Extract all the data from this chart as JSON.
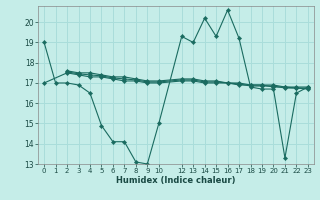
{
  "title": "",
  "xlabel": "Humidex (Indice chaleur)",
  "bg_color": "#c5ede8",
  "grid_color": "#aaddda",
  "line_color": "#1a6b60",
  "ylim": [
    13,
    20.8
  ],
  "xlim": [
    -0.5,
    23.5
  ],
  "yticks": [
    13,
    14,
    15,
    16,
    17,
    18,
    19,
    20
  ],
  "xticks": [
    0,
    1,
    2,
    3,
    4,
    5,
    6,
    7,
    8,
    9,
    10,
    12,
    13,
    14,
    15,
    16,
    17,
    18,
    19,
    20,
    21,
    22,
    23
  ],
  "series": [
    {
      "x": [
        0,
        1,
        2,
        3,
        4,
        5,
        6,
        7,
        8,
        9,
        10,
        12,
        13,
        14,
        15,
        16,
        17,
        18,
        19,
        20,
        21,
        22,
        23
      ],
      "y": [
        19.0,
        17.0,
        17.0,
        16.9,
        16.5,
        14.9,
        14.1,
        14.1,
        13.1,
        13.0,
        15.0,
        19.3,
        19.0,
        20.2,
        19.3,
        20.6,
        19.2,
        16.8,
        16.7,
        16.7,
        13.3,
        16.5,
        16.8
      ]
    },
    {
      "x": [
        2,
        3,
        4,
        5,
        6,
        7,
        8,
        9,
        10,
        12,
        13,
        14,
        15,
        16,
        17,
        18,
        19,
        20,
        21,
        22,
        23
      ],
      "y": [
        17.6,
        17.5,
        17.5,
        17.4,
        17.3,
        17.3,
        17.2,
        17.1,
        17.1,
        17.2,
        17.2,
        17.1,
        17.1,
        17.0,
        17.0,
        16.9,
        16.9,
        16.9,
        16.8,
        16.8,
        16.8
      ]
    },
    {
      "x": [
        2,
        3,
        4,
        5,
        6,
        7,
        8,
        9,
        10,
        12,
        13,
        14,
        15,
        16,
        17,
        18,
        19,
        20,
        21,
        22,
        23
      ],
      "y": [
        17.55,
        17.45,
        17.4,
        17.35,
        17.25,
        17.2,
        17.15,
        17.05,
        17.05,
        17.15,
        17.15,
        17.05,
        17.05,
        17.0,
        16.95,
        16.85,
        16.85,
        16.85,
        16.75,
        16.75,
        16.75
      ]
    },
    {
      "x": [
        0,
        2,
        3,
        4,
        5,
        6,
        7,
        8,
        9,
        10,
        12,
        13,
        14,
        15,
        16,
        17,
        18,
        19,
        20,
        21,
        22,
        23
      ],
      "y": [
        17.0,
        17.5,
        17.4,
        17.3,
        17.3,
        17.2,
        17.1,
        17.1,
        17.0,
        17.0,
        17.1,
        17.1,
        17.0,
        17.0,
        17.0,
        16.9,
        16.9,
        16.9,
        16.8,
        16.8,
        16.75,
        16.7
      ]
    }
  ]
}
